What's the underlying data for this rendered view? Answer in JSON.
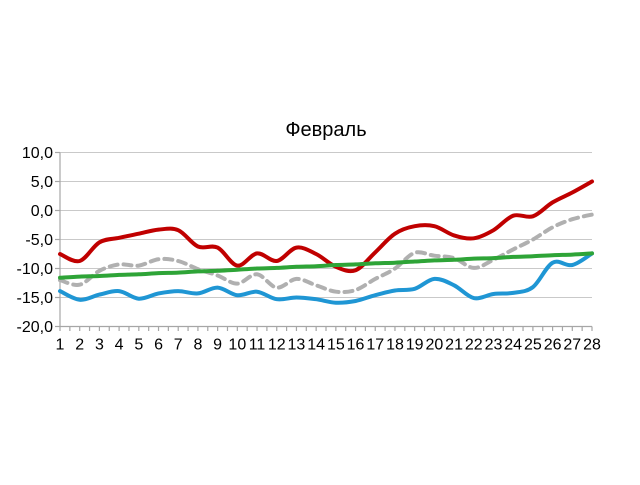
{
  "chart_data": {
    "type": "line",
    "title": "Февраль",
    "categories": [
      "1",
      "2",
      "3",
      "4",
      "5",
      "6",
      "7",
      "8",
      "9",
      "10",
      "11",
      "12",
      "13",
      "14",
      "15",
      "16",
      "17",
      "18",
      "19",
      "20",
      "21",
      "22",
      "23",
      "24",
      "25",
      "26",
      "27",
      "28"
    ],
    "y_ticks": [
      "10,0",
      "5,0",
      "0,0",
      "-5,0",
      "-10,0",
      "-15,0",
      "-20,0"
    ],
    "y_tick_values": [
      10,
      5,
      0,
      -5,
      -10,
      -15,
      -20
    ],
    "ylim": [
      -20,
      10
    ],
    "xlabel": "",
    "ylabel": "",
    "grid": "horizontal",
    "legend": "none",
    "background_color": "#FFFFFF",
    "gridline_color": "#C9C9C9",
    "axis_color": "#A6A6A6",
    "text_color": "#000000",
    "series": [
      {
        "name": "gray-dashed-line",
        "color": "#B0B0B0",
        "style": "dashed",
        "values": [
          -12.0,
          -12.8,
          -10.4,
          -9.3,
          -9.5,
          -8.4,
          -8.7,
          -10.1,
          -11.2,
          -12.6,
          -11.0,
          -13.3,
          -11.8,
          -12.9,
          -14.0,
          -13.7,
          -11.8,
          -10.0,
          -7.3,
          -7.8,
          -8.2,
          -9.9,
          -8.5,
          -6.7,
          -5.0,
          -2.9,
          -1.5,
          -0.7
        ]
      },
      {
        "name": "red-line",
        "color": "#C00000",
        "style": "solid",
        "values": [
          -7.5,
          -8.7,
          -5.5,
          -4.7,
          -4.0,
          -3.3,
          -3.4,
          -6.2,
          -6.4,
          -9.5,
          -7.4,
          -8.7,
          -6.4,
          -7.5,
          -9.7,
          -10.3,
          -7.2,
          -4.0,
          -2.7,
          -2.7,
          -4.3,
          -4.8,
          -3.4,
          -0.9,
          -1.0,
          1.4,
          3.1,
          5.0
        ]
      },
      {
        "name": "blue-line",
        "color": "#1F96D4",
        "style": "solid",
        "values": [
          -13.9,
          -15.4,
          -14.5,
          -13.9,
          -15.2,
          -14.3,
          -13.9,
          -14.3,
          -13.3,
          -14.6,
          -14.0,
          -15.3,
          -15.0,
          -15.3,
          -15.9,
          -15.6,
          -14.6,
          -13.8,
          -13.5,
          -11.8,
          -12.9,
          -15.1,
          -14.4,
          -14.2,
          -13.2,
          -9.0,
          -9.4,
          -7.4
        ]
      },
      {
        "name": "green-trend-line",
        "color": "#2EA437",
        "style": "solid",
        "values": [
          -11.6,
          -11.4,
          -11.3,
          -11.1,
          -11.0,
          -10.8,
          -10.7,
          -10.5,
          -10.4,
          -10.2,
          -10.0,
          -9.9,
          -9.7,
          -9.6,
          -9.4,
          -9.3,
          -9.1,
          -9.0,
          -8.8,
          -8.6,
          -8.5,
          -8.3,
          -8.2,
          -8.0,
          -7.9,
          -7.7,
          -7.6,
          -7.4
        ]
      }
    ]
  }
}
